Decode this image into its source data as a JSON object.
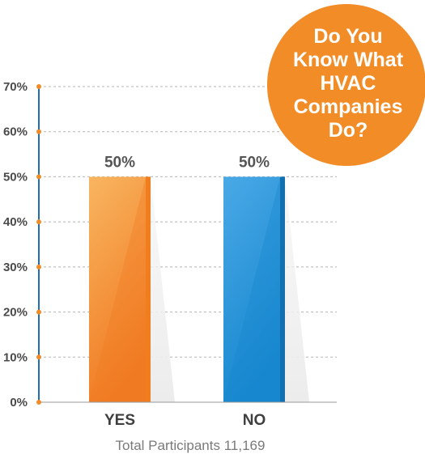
{
  "chart_data": {
    "type": "bar",
    "categories": [
      "YES",
      "NO"
    ],
    "values": [
      50,
      50
    ],
    "data_labels": [
      "50%",
      "50%"
    ],
    "y_ticks": [
      "0%",
      "10%",
      "20%",
      "30%",
      "40%",
      "50%",
      "60%",
      "70%"
    ],
    "ylim": [
      0,
      70
    ],
    "grid": true,
    "colors": {
      "yes_light": "#f9b560",
      "yes_dark": "#f07a22",
      "yes_edge": "#f07e1f",
      "no_light": "#4aa9e6",
      "no_dark": "#1787cf",
      "no_edge": "#1270b0",
      "axis": "#1f6fb5",
      "tick_dot": "#f28c26"
    }
  },
  "badge": {
    "lines": [
      "Do You",
      "Know What",
      "HVAC",
      "Companies",
      "Do?"
    ],
    "color": "#f28c26"
  },
  "footer": {
    "text": "Total Participants 11,169"
  }
}
